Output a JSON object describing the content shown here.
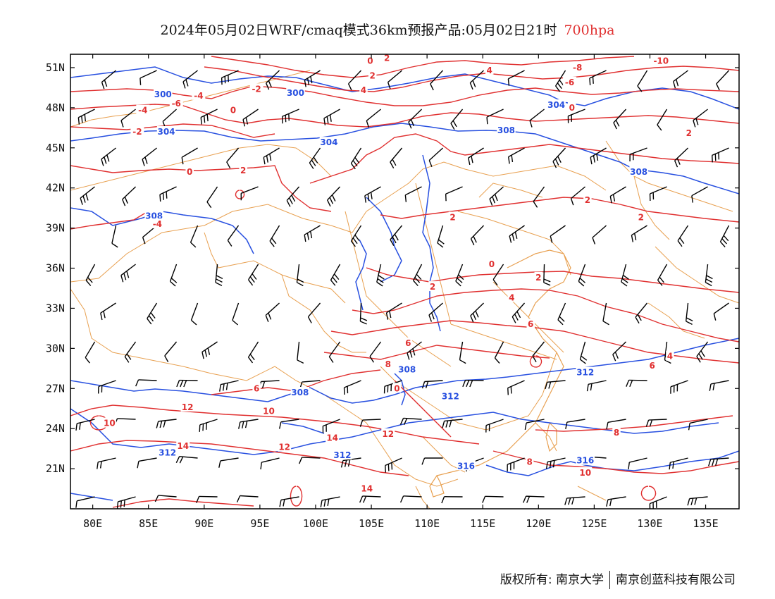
{
  "title": {
    "main": "2024年05月02日WRF/cmaq模式36km预报产品:05月02日21时",
    "level": "700hpa",
    "level_color": "#e03030"
  },
  "map": {
    "lon_range": [
      78,
      138
    ],
    "lat_range": [
      18,
      52
    ],
    "x_ticks": [
      "80E",
      "85E",
      "90E",
      "95E",
      "100E",
      "105E",
      "110E",
      "115E",
      "120E",
      "125E",
      "130E",
      "135E"
    ],
    "x_tick_values": [
      80,
      85,
      90,
      95,
      100,
      105,
      110,
      115,
      120,
      125,
      130,
      135
    ],
    "y_ticks": [
      "51N",
      "48N",
      "45N",
      "42N",
      "39N",
      "36N",
      "33N",
      "30N",
      "27N",
      "24N",
      "21N"
    ],
    "y_tick_values": [
      51,
      48,
      45,
      42,
      39,
      36,
      33,
      30,
      27,
      24,
      21
    ],
    "colors": {
      "height_contour": "#2850e0",
      "temperature_contour": "#e03030",
      "boundary": "#e8a050",
      "wind_barb": "#000000"
    },
    "height_labels": [
      {
        "text": "300",
        "lon": 86.3,
        "lat": 49.0
      },
      {
        "text": "300",
        "lon": 98.2,
        "lat": 49.1
      },
      {
        "text": "304",
        "lon": 86.6,
        "lat": 46.2
      },
      {
        "text": "304",
        "lon": 101.2,
        "lat": 45.4
      },
      {
        "text": "304",
        "lon": 121.6,
        "lat": 48.2
      },
      {
        "text": "308",
        "lon": 117.1,
        "lat": 46.3
      },
      {
        "text": "308",
        "lon": 129.0,
        "lat": 43.2
      },
      {
        "text": "308",
        "lon": 85.5,
        "lat": 39.9
      },
      {
        "text": "308",
        "lon": 108.2,
        "lat": 28.4
      },
      {
        "text": "308",
        "lon": 98.6,
        "lat": 26.7
      },
      {
        "text": "312",
        "lon": 112.1,
        "lat": 26.4
      },
      {
        "text": "312",
        "lon": 124.2,
        "lat": 28.2
      },
      {
        "text": "312",
        "lon": 86.7,
        "lat": 22.2
      },
      {
        "text": "312",
        "lon": 102.4,
        "lat": 22.0
      },
      {
        "text": "316",
        "lon": 124.2,
        "lat": 21.6
      },
      {
        "text": "316",
        "lon": 113.5,
        "lat": 21.2
      }
    ],
    "temp_labels": [
      {
        "text": "0",
        "lon": 104.9,
        "lat": 51.5
      },
      {
        "text": "2",
        "lon": 106.4,
        "lat": 51.7
      },
      {
        "text": "2",
        "lon": 105.1,
        "lat": 50.4
      },
      {
        "text": "4",
        "lon": 115.6,
        "lat": 50.8
      },
      {
        "text": "4",
        "lon": 104.3,
        "lat": 49.3
      },
      {
        "text": "-2",
        "lon": 94.7,
        "lat": 49.4
      },
      {
        "text": "-4",
        "lon": 89.5,
        "lat": 48.9
      },
      {
        "text": "-6",
        "lon": 87.5,
        "lat": 48.3
      },
      {
        "text": "-4",
        "lon": 84.5,
        "lat": 47.8
      },
      {
        "text": "-2",
        "lon": 84.0,
        "lat": 46.2
      },
      {
        "text": "0",
        "lon": 92.6,
        "lat": 47.8
      },
      {
        "text": "0",
        "lon": 88.7,
        "lat": 43.2
      },
      {
        "text": "2",
        "lon": 93.5,
        "lat": 43.3
      },
      {
        "text": "-4",
        "lon": 85.8,
        "lat": 39.3
      },
      {
        "text": "-8",
        "lon": 123.5,
        "lat": 51.0
      },
      {
        "text": "-6",
        "lon": 122.8,
        "lat": 49.9
      },
      {
        "text": "-10",
        "lon": 131.0,
        "lat": 51.5
      },
      {
        "text": "0",
        "lon": 123.0,
        "lat": 48.0
      },
      {
        "text": "2",
        "lon": 133.5,
        "lat": 46.1
      },
      {
        "text": "2",
        "lon": 124.4,
        "lat": 41.1
      },
      {
        "text": "2",
        "lon": 129.2,
        "lat": 39.8
      },
      {
        "text": "2",
        "lon": 112.3,
        "lat": 39.8
      },
      {
        "text": "0",
        "lon": 115.8,
        "lat": 36.3
      },
      {
        "text": "2",
        "lon": 120.0,
        "lat": 35.3
      },
      {
        "text": "2",
        "lon": 110.5,
        "lat": 34.6
      },
      {
        "text": "4",
        "lon": 117.6,
        "lat": 33.8
      },
      {
        "text": "4",
        "lon": 131.8,
        "lat": 29.4
      },
      {
        "text": "6",
        "lon": 119.3,
        "lat": 31.8
      },
      {
        "text": "6",
        "lon": 108.3,
        "lat": 30.4
      },
      {
        "text": "6",
        "lon": 130.2,
        "lat": 28.7
      },
      {
        "text": "8",
        "lon": 106.5,
        "lat": 28.8
      },
      {
        "text": "6",
        "lon": 94.7,
        "lat": 27.0
      },
      {
        "text": "10",
        "lon": 95.8,
        "lat": 25.3
      },
      {
        "text": "12",
        "lon": 88.5,
        "lat": 25.6
      },
      {
        "text": "10",
        "lon": 81.5,
        "lat": 24.4
      },
      {
        "text": "14",
        "lon": 88.1,
        "lat": 22.7
      },
      {
        "text": "12",
        "lon": 97.2,
        "lat": 22.6
      },
      {
        "text": "12",
        "lon": 106.5,
        "lat": 23.6
      },
      {
        "text": "14",
        "lon": 101.5,
        "lat": 23.3
      },
      {
        "text": "14",
        "lon": 104.6,
        "lat": 19.5
      },
      {
        "text": "0",
        "lon": 107.3,
        "lat": 27.0
      },
      {
        "text": "8",
        "lon": 127.0,
        "lat": 23.7
      },
      {
        "text": "8",
        "lon": 119.2,
        "lat": 21.5
      },
      {
        "text": "10",
        "lon": 124.2,
        "lat": 20.7
      }
    ]
  },
  "copyright": {
    "left": "版权所有: 南京大学",
    "right": "南京创蓝科技有限公司"
  }
}
